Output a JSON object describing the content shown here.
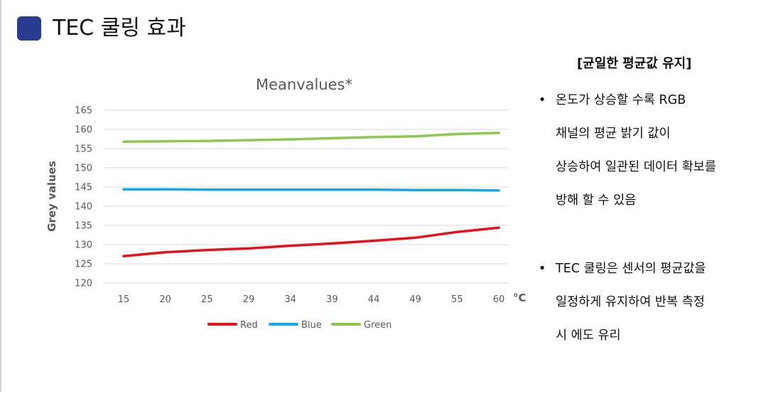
{
  "page": {
    "title": "TEC 쿨링 효과",
    "accent_color": "#283c92"
  },
  "summary": {
    "heading": "[균일한 평균값 유지]",
    "bullets": [
      {
        "marker": "•",
        "lines": [
          "온도가 상승할 수록 RGB",
          "채널의 평균 밝기 값이",
          "상승하여 일관된 데이터 확보를",
          "방해 할 수 있음"
        ]
      },
      {
        "marker": "•",
        "lines": [
          "TEC 쿨링은 센서의 평균값을",
          "일정하게 유지하여 반복 측정",
          "시 에도 유리"
        ]
      }
    ]
  },
  "chart_data": {
    "type": "line",
    "title": "Meanvalues*",
    "ylabel": "Grey values",
    "x_unit": "°C",
    "categories": [
      "15",
      "20",
      "25",
      "29",
      "34",
      "39",
      "44",
      "49",
      "55",
      "60"
    ],
    "ylim": [
      120,
      165
    ],
    "yticks": [
      120,
      125,
      130,
      135,
      140,
      145,
      150,
      155,
      160,
      165
    ],
    "grid": true,
    "legend": "bottom",
    "series": [
      {
        "name": "Red",
        "color": "#e8101a",
        "values": [
          127.0,
          128.0,
          128.6,
          129.0,
          129.7,
          130.3,
          131.0,
          131.8,
          133.3,
          134.4
        ]
      },
      {
        "name": "Blue",
        "color": "#13a9e8",
        "values": [
          144.4,
          144.4,
          144.3,
          144.3,
          144.3,
          144.3,
          144.3,
          144.2,
          144.2,
          144.1
        ]
      },
      {
        "name": "Green",
        "color": "#8cc84b",
        "values": [
          156.8,
          156.9,
          157.0,
          157.2,
          157.4,
          157.7,
          158.0,
          158.2,
          158.8,
          159.1
        ]
      }
    ]
  }
}
